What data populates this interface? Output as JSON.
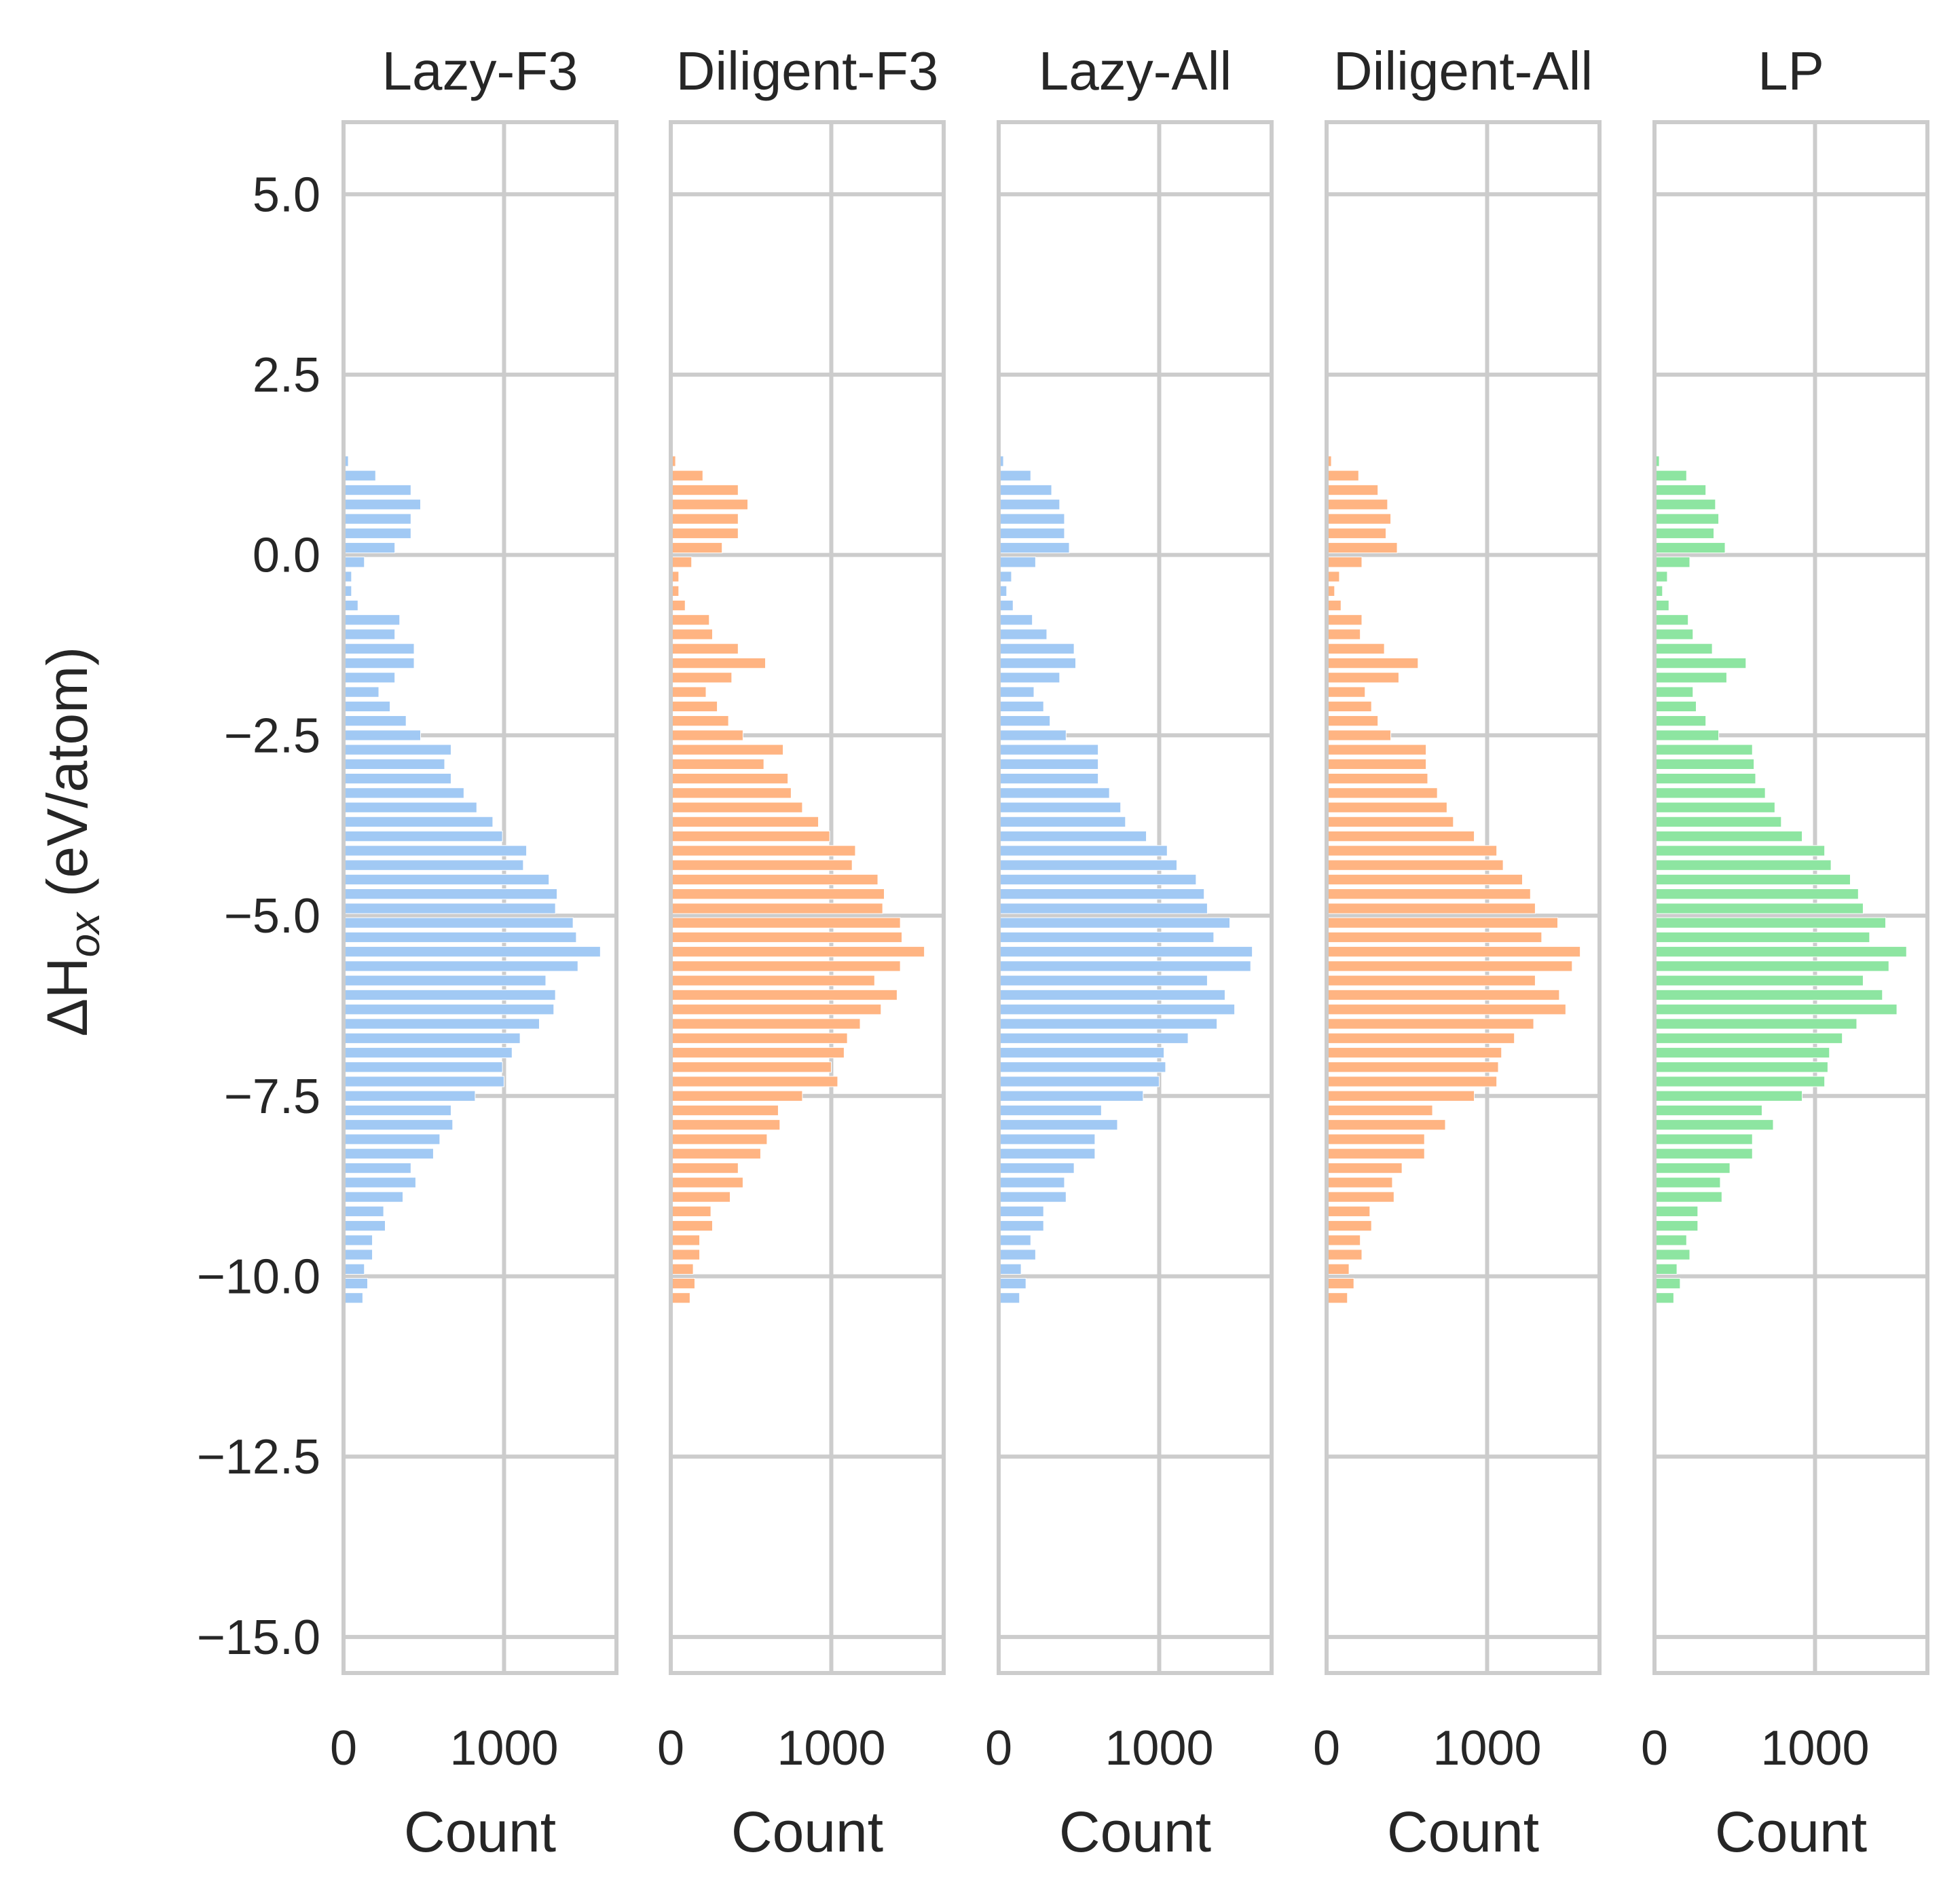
{
  "chart_data": {
    "type": "bar",
    "orientation": "horizontal",
    "ylabel": "ΔH_ox (eV/atom)",
    "ylabel_main": "ΔH",
    "ylabel_sub": "ox",
    "ylabel_unit": " (eV/atom)",
    "ylim": [
      -15.5,
      6
    ],
    "y_ticks": [
      5.0,
      2.5,
      0.0,
      -2.5,
      -5.0,
      -7.5,
      -10.0,
      -12.5,
      -15.0
    ],
    "y_tick_labels": [
      "5.0",
      "2.5",
      "0.0",
      "−2.5",
      "−5.0",
      "−7.5",
      "−10.0",
      "−12.5",
      "−15.0"
    ],
    "xlim": [
      0,
      1700
    ],
    "x_ticks": [
      0,
      1000
    ],
    "x_tick_labels": [
      "0",
      "1000"
    ],
    "xlabel": "Count",
    "grid": true,
    "bin_width": 0.2,
    "bin_centers": [
      1.3,
      1.1,
      0.9,
      0.7,
      0.5,
      0.3,
      0.1,
      -0.1,
      -0.3,
      -0.5,
      -0.7,
      -0.9,
      -1.1,
      -1.3,
      -1.5,
      -1.7,
      -1.9,
      -2.1,
      -2.3,
      -2.5,
      -2.7,
      -2.9,
      -3.1,
      -3.3,
      -3.5,
      -3.7,
      -3.9,
      -4.1,
      -4.3,
      -4.5,
      -4.7,
      -4.9,
      -5.1,
      -5.3,
      -5.5,
      -5.7,
      -5.9,
      -6.1,
      -6.3,
      -6.5,
      -6.7,
      -6.9,
      -7.1,
      -7.3,
      -7.5,
      -7.7,
      -7.9,
      -8.1,
      -8.3,
      -8.5,
      -8.7,
      -8.9,
      -9.1,
      -9.3,
      -9.5,
      -9.7,
      -9.9,
      -10.1,
      -10.3
    ],
    "series": [
      {
        "name": "Lazy-F3",
        "color": "#a1c9f4",
        "values": [
          30,
          200,
          420,
          480,
          420,
          420,
          320,
          130,
          50,
          50,
          90,
          350,
          320,
          440,
          440,
          320,
          220,
          290,
          390,
          480,
          670,
          630,
          670,
          750,
          830,
          930,
          990,
          1140,
          1120,
          1280,
          1330,
          1320,
          1430,
          1450,
          1600,
          1460,
          1260,
          1320,
          1310,
          1220,
          1100,
          1050,
          990,
          1000,
          820,
          670,
          680,
          600,
          560,
          420,
          450,
          370,
          250,
          260,
          180,
          180,
          130,
          150,
          120
        ]
      },
      {
        "name": "Diligent-F3",
        "color": "#ffb482",
        "values": [
          30,
          200,
          420,
          480,
          420,
          420,
          320,
          130,
          50,
          50,
          90,
          240,
          260,
          420,
          590,
          380,
          220,
          290,
          360,
          450,
          700,
          580,
          730,
          750,
          820,
          920,
          990,
          1150,
          1130,
          1290,
          1330,
          1320,
          1430,
          1440,
          1580,
          1430,
          1270,
          1410,
          1310,
          1180,
          1100,
          1080,
          1000,
          1040,
          820,
          670,
          680,
          600,
          560,
          420,
          450,
          370,
          250,
          260,
          180,
          180,
          140,
          150,
          120
        ]
      },
      {
        "name": "Lazy-All",
        "color": "#a1c9f4",
        "values": [
          30,
          200,
          330,
          380,
          410,
          410,
          440,
          230,
          80,
          50,
          90,
          210,
          300,
          470,
          480,
          380,
          220,
          280,
          320,
          420,
          620,
          620,
          620,
          690,
          760,
          790,
          920,
          1050,
          1110,
          1230,
          1280,
          1300,
          1440,
          1340,
          1580,
          1570,
          1300,
          1410,
          1470,
          1360,
          1180,
          1030,
          1040,
          1000,
          900,
          640,
          740,
          600,
          600,
          470,
          410,
          420,
          280,
          280,
          200,
          230,
          140,
          170,
          130
        ]
      },
      {
        "name": "Diligent-All",
        "color": "#ffb482",
        "values": [
          30,
          200,
          320,
          380,
          400,
          370,
          440,
          220,
          80,
          50,
          90,
          220,
          210,
          360,
          570,
          450,
          240,
          280,
          320,
          400,
          620,
          620,
          630,
          690,
          750,
          790,
          920,
          1060,
          1100,
          1220,
          1270,
          1300,
          1440,
          1340,
          1580,
          1530,
          1300,
          1450,
          1490,
          1290,
          1170,
          1090,
          1070,
          1060,
          920,
          660,
          740,
          610,
          610,
          470,
          410,
          420,
          270,
          280,
          210,
          220,
          140,
          170,
          130
        ]
      },
      {
        "name": "LP",
        "color": "#8de5a1",
        "values": [
          30,
          200,
          320,
          380,
          400,
          370,
          440,
          220,
          80,
          50,
          90,
          210,
          240,
          360,
          570,
          450,
          240,
          260,
          320,
          400,
          610,
          620,
          630,
          690,
          750,
          790,
          920,
          1060,
          1100,
          1220,
          1270,
          1300,
          1440,
          1340,
          1570,
          1460,
          1300,
          1420,
          1510,
          1260,
          1170,
          1090,
          1080,
          1060,
          920,
          670,
          740,
          610,
          610,
          470,
          410,
          420,
          270,
          270,
          200,
          220,
          140,
          160,
          120
        ]
      }
    ]
  }
}
